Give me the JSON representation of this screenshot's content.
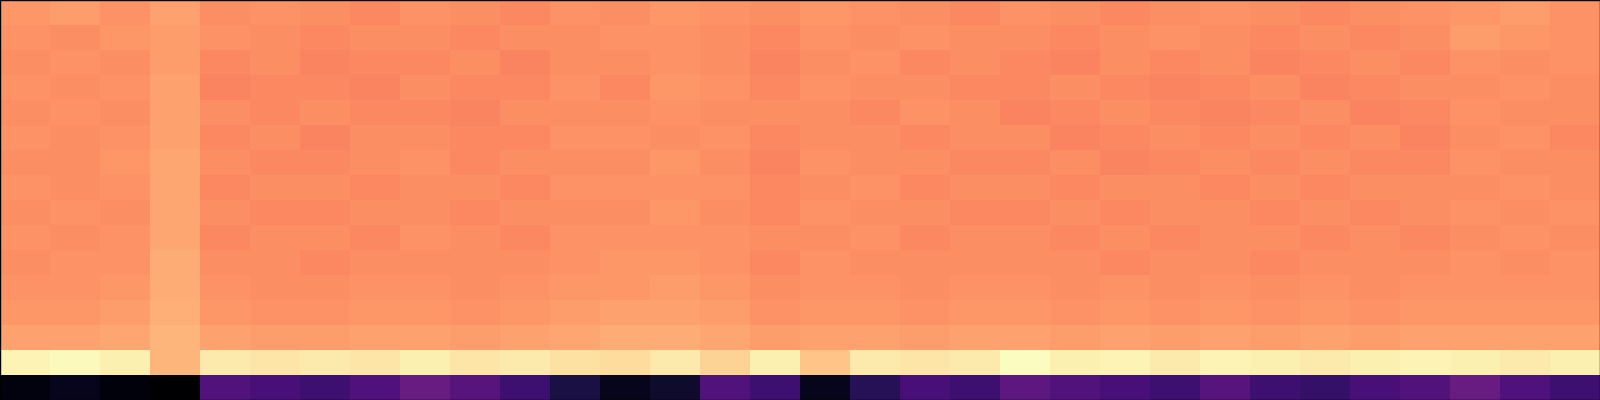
{
  "chart_data": {
    "type": "heatmap",
    "color": "magma",
    "tick_labels": false,
    "cells": [
      [
        0.76,
        0.77,
        0.75,
        0.78,
        0.74,
        0.75,
        0.74,
        0.73,
        0.75,
        0.74,
        0.73,
        0.75,
        0.74,
        0.76,
        0.75,
        0.74,
        0.76,
        0.75,
        0.74,
        0.73,
        0.75,
        0.74,
        0.73,
        0.74,
        0.75,
        0.74,
        0.73,
        0.74,
        0.75,
        0.76,
        0.77,
        0.75
      ],
      [
        0.75,
        0.74,
        0.76,
        0.77,
        0.75,
        0.74,
        0.73,
        0.74,
        0.74,
        0.73,
        0.74,
        0.74,
        0.75,
        0.75,
        0.74,
        0.73,
        0.75,
        0.74,
        0.75,
        0.74,
        0.74,
        0.73,
        0.74,
        0.75,
        0.74,
        0.73,
        0.74,
        0.73,
        0.74,
        0.77,
        0.76,
        0.75
      ],
      [
        0.74,
        0.75,
        0.74,
        0.77,
        0.73,
        0.74,
        0.72,
        0.73,
        0.73,
        0.74,
        0.72,
        0.74,
        0.74,
        0.75,
        0.74,
        0.72,
        0.74,
        0.75,
        0.73,
        0.74,
        0.73,
        0.72,
        0.74,
        0.73,
        0.74,
        0.72,
        0.73,
        0.74,
        0.73,
        0.75,
        0.74,
        0.75
      ],
      [
        0.75,
        0.74,
        0.75,
        0.78,
        0.72,
        0.73,
        0.73,
        0.72,
        0.74,
        0.73,
        0.73,
        0.75,
        0.73,
        0.76,
        0.75,
        0.73,
        0.75,
        0.74,
        0.74,
        0.73,
        0.73,
        0.74,
        0.73,
        0.72,
        0.73,
        0.74,
        0.72,
        0.73,
        0.74,
        0.74,
        0.75,
        0.74
      ],
      [
        0.74,
        0.75,
        0.74,
        0.78,
        0.74,
        0.73,
        0.74,
        0.73,
        0.73,
        0.72,
        0.74,
        0.74,
        0.74,
        0.75,
        0.74,
        0.74,
        0.74,
        0.73,
        0.75,
        0.74,
        0.72,
        0.73,
        0.74,
        0.73,
        0.72,
        0.73,
        0.74,
        0.72,
        0.73,
        0.75,
        0.74,
        0.74
      ],
      [
        0.75,
        0.74,
        0.75,
        0.78,
        0.73,
        0.74,
        0.72,
        0.74,
        0.74,
        0.73,
        0.73,
        0.75,
        0.75,
        0.74,
        0.75,
        0.73,
        0.74,
        0.74,
        0.73,
        0.74,
        0.74,
        0.72,
        0.73,
        0.74,
        0.73,
        0.74,
        0.73,
        0.74,
        0.72,
        0.74,
        0.75,
        0.73
      ],
      [
        0.74,
        0.74,
        0.76,
        0.79,
        0.74,
        0.73,
        0.73,
        0.74,
        0.75,
        0.73,
        0.74,
        0.74,
        0.74,
        0.76,
        0.74,
        0.72,
        0.75,
        0.74,
        0.74,
        0.73,
        0.73,
        0.74,
        0.72,
        0.73,
        0.74,
        0.73,
        0.74,
        0.73,
        0.73,
        0.75,
        0.74,
        0.74
      ],
      [
        0.75,
        0.74,
        0.75,
        0.79,
        0.73,
        0.74,
        0.74,
        0.73,
        0.74,
        0.74,
        0.73,
        0.75,
        0.75,
        0.75,
        0.75,
        0.73,
        0.74,
        0.75,
        0.73,
        0.74,
        0.74,
        0.73,
        0.74,
        0.74,
        0.73,
        0.74,
        0.73,
        0.74,
        0.74,
        0.74,
        0.75,
        0.74
      ],
      [
        0.74,
        0.75,
        0.74,
        0.79,
        0.74,
        0.73,
        0.73,
        0.74,
        0.74,
        0.73,
        0.74,
        0.74,
        0.74,
        0.76,
        0.74,
        0.73,
        0.75,
        0.74,
        0.74,
        0.73,
        0.73,
        0.74,
        0.73,
        0.74,
        0.74,
        0.73,
        0.74,
        0.73,
        0.74,
        0.75,
        0.74,
        0.75
      ],
      [
        0.75,
        0.74,
        0.75,
        0.79,
        0.73,
        0.74,
        0.74,
        0.73,
        0.75,
        0.74,
        0.73,
        0.75,
        0.75,
        0.75,
        0.75,
        0.74,
        0.74,
        0.75,
        0.73,
        0.74,
        0.74,
        0.73,
        0.74,
        0.73,
        0.74,
        0.74,
        0.73,
        0.74,
        0.73,
        0.74,
        0.75,
        0.74
      ],
      [
        0.74,
        0.75,
        0.75,
        0.8,
        0.74,
        0.74,
        0.73,
        0.74,
        0.74,
        0.74,
        0.74,
        0.75,
        0.76,
        0.76,
        0.75,
        0.73,
        0.75,
        0.74,
        0.74,
        0.74,
        0.74,
        0.74,
        0.73,
        0.74,
        0.74,
        0.73,
        0.74,
        0.74,
        0.74,
        0.75,
        0.74,
        0.75
      ],
      [
        0.75,
        0.75,
        0.76,
        0.8,
        0.75,
        0.74,
        0.74,
        0.75,
        0.75,
        0.74,
        0.75,
        0.76,
        0.76,
        0.77,
        0.76,
        0.74,
        0.75,
        0.75,
        0.74,
        0.75,
        0.75,
        0.74,
        0.75,
        0.74,
        0.75,
        0.74,
        0.75,
        0.74,
        0.75,
        0.75,
        0.75,
        0.75
      ],
      [
        0.76,
        0.76,
        0.77,
        0.81,
        0.76,
        0.75,
        0.75,
        0.76,
        0.76,
        0.75,
        0.76,
        0.77,
        0.78,
        0.78,
        0.77,
        0.75,
        0.76,
        0.76,
        0.75,
        0.76,
        0.76,
        0.75,
        0.76,
        0.75,
        0.76,
        0.75,
        0.76,
        0.75,
        0.76,
        0.76,
        0.76,
        0.76
      ],
      [
        0.78,
        0.78,
        0.79,
        0.82,
        0.78,
        0.77,
        0.77,
        0.78,
        0.78,
        0.77,
        0.78,
        0.79,
        0.8,
        0.8,
        0.79,
        0.77,
        0.78,
        0.78,
        0.77,
        0.78,
        0.78,
        0.77,
        0.78,
        0.77,
        0.78,
        0.77,
        0.78,
        0.77,
        0.78,
        0.78,
        0.78,
        0.78
      ],
      [
        0.95,
        0.96,
        0.94,
        0.82,
        0.93,
        0.92,
        0.93,
        0.92,
        0.94,
        0.92,
        0.93,
        0.91,
        0.9,
        0.93,
        0.88,
        0.94,
        0.85,
        0.93,
        0.92,
        0.93,
        0.97,
        0.94,
        0.95,
        0.93,
        0.95,
        0.94,
        0.93,
        0.94,
        0.95,
        0.94,
        0.93,
        0.94
      ],
      [
        0.03,
        0.05,
        0.02,
        0.0,
        0.25,
        0.22,
        0.2,
        0.24,
        0.3,
        0.26,
        0.2,
        0.12,
        0.05,
        0.08,
        0.25,
        0.2,
        0.05,
        0.15,
        0.22,
        0.2,
        0.28,
        0.25,
        0.22,
        0.2,
        0.26,
        0.2,
        0.18,
        0.22,
        0.25,
        0.3,
        0.24,
        0.2
      ]
    ]
  }
}
